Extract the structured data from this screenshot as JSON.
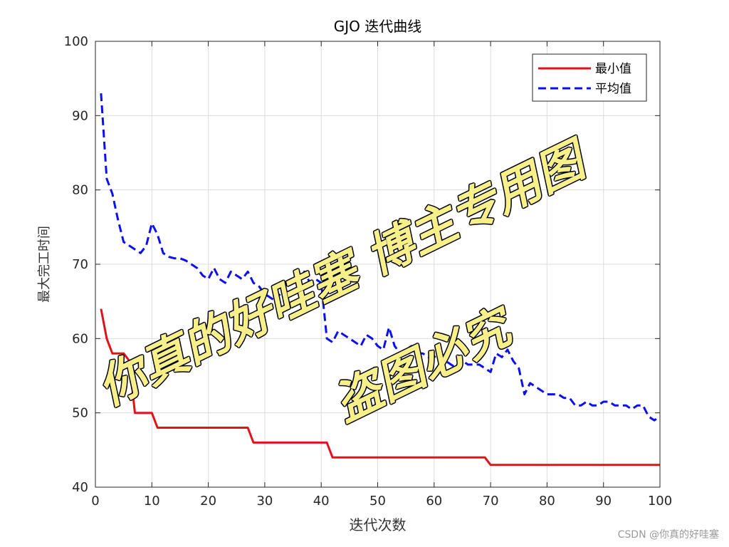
{
  "chart_data": {
    "type": "line",
    "title": "GJO 迭代曲线",
    "xlabel": "迭代次数",
    "ylabel": "最大完工时间",
    "xlim": [
      0,
      100
    ],
    "ylim": [
      40,
      100
    ],
    "xticks": [
      0,
      10,
      20,
      30,
      40,
      50,
      60,
      70,
      80,
      90,
      100
    ],
    "yticks": [
      40,
      50,
      60,
      70,
      80,
      90,
      100
    ],
    "grid": true,
    "legend_position": "top-right",
    "series": [
      {
        "name": "最小值",
        "color": "#e3121a",
        "style": "solid",
        "x": [
          1,
          2,
          3,
          4,
          5,
          6,
          7,
          8,
          9,
          10,
          11,
          12,
          13,
          14,
          15,
          16,
          17,
          18,
          19,
          20,
          21,
          22,
          23,
          24,
          25,
          26,
          27,
          28,
          29,
          30,
          31,
          32,
          33,
          34,
          35,
          36,
          37,
          38,
          39,
          40,
          41,
          42,
          43,
          44,
          45,
          46,
          47,
          48,
          49,
          50,
          51,
          52,
          53,
          54,
          55,
          56,
          57,
          58,
          59,
          60,
          61,
          62,
          63,
          64,
          65,
          66,
          67,
          68,
          69,
          70,
          71,
          72,
          73,
          74,
          75,
          76,
          77,
          78,
          79,
          80,
          81,
          82,
          83,
          84,
          85,
          86,
          87,
          88,
          89,
          90,
          91,
          92,
          93,
          94,
          95,
          96,
          97,
          98,
          99,
          100
        ],
        "y": [
          64,
          60,
          58,
          58,
          58,
          57,
          50,
          50,
          50,
          50,
          48,
          48,
          48,
          48,
          48,
          48,
          48,
          48,
          48,
          48,
          48,
          48,
          48,
          48,
          48,
          48,
          48,
          46,
          46,
          46,
          46,
          46,
          46,
          46,
          46,
          46,
          46,
          46,
          46,
          46,
          46,
          44,
          44,
          44,
          44,
          44,
          44,
          44,
          44,
          44,
          44,
          44,
          44,
          44,
          44,
          44,
          44,
          44,
          44,
          44,
          44,
          44,
          44,
          44,
          44,
          44,
          44,
          44,
          44,
          43,
          43,
          43,
          43,
          43,
          43,
          43,
          43,
          43,
          43,
          43,
          43,
          43,
          43,
          43,
          43,
          43,
          43,
          43,
          43,
          43,
          43,
          43,
          43,
          43,
          43,
          43,
          43,
          43,
          43,
          43
        ]
      },
      {
        "name": "平均值",
        "color": "#0a0ff5",
        "style": "dashed",
        "x": [
          1,
          2,
          3,
          4,
          5,
          6,
          7,
          8,
          9,
          10,
          11,
          12,
          13,
          14,
          15,
          16,
          17,
          18,
          19,
          20,
          21,
          22,
          23,
          24,
          25,
          26,
          27,
          28,
          29,
          30,
          31,
          32,
          33,
          34,
          35,
          36,
          37,
          38,
          39,
          40,
          41,
          42,
          43,
          44,
          45,
          46,
          47,
          48,
          49,
          50,
          51,
          52,
          53,
          54,
          55,
          56,
          57,
          58,
          59,
          60,
          61,
          62,
          63,
          64,
          65,
          66,
          67,
          68,
          69,
          70,
          71,
          72,
          73,
          74,
          75,
          76,
          77,
          78,
          79,
          80,
          81,
          82,
          83,
          84,
          85,
          86,
          87,
          88,
          89,
          90,
          91,
          92,
          93,
          94,
          95,
          96,
          97,
          98,
          99,
          100
        ],
        "y": [
          93,
          81.5,
          79.5,
          76,
          73,
          72.5,
          72,
          71.5,
          72.5,
          75.5,
          74,
          71.5,
          71,
          70.8,
          70.8,
          70.5,
          70,
          69.5,
          68.5,
          68,
          69.5,
          68,
          67.5,
          69,
          68.5,
          68,
          69,
          67.5,
          67,
          66,
          65.5,
          65,
          66.5,
          65.5,
          66.5,
          67.5,
          69,
          67.5,
          68,
          67.5,
          60,
          59.5,
          61,
          60.5,
          60,
          59.5,
          59,
          60.5,
          60,
          59,
          58.5,
          61.5,
          59,
          58,
          58.5,
          59,
          58,
          58,
          57.5,
          57.5,
          58,
          57,
          56.5,
          56,
          57,
          56.5,
          56.5,
          56.5,
          56,
          55.5,
          58,
          57.5,
          58.5,
          57,
          56,
          52.5,
          54,
          53.5,
          53,
          52.5,
          52.5,
          52.5,
          52,
          52,
          51,
          51,
          51.5,
          51,
          51,
          51.5,
          51.5,
          51,
          51,
          51,
          50.5,
          51,
          51,
          49.5,
          49,
          49.5
        ]
      }
    ]
  },
  "watermark": {
    "line1": "你真的好哇塞 博主专用图",
    "line2": "盗图必究"
  },
  "credit": "CSDN @你真的好哇塞",
  "colors": {
    "watermark_fill": "#f7f08a",
    "watermark_stroke": "#000000",
    "grid": "#dcdcdc",
    "axis": "#262626"
  }
}
